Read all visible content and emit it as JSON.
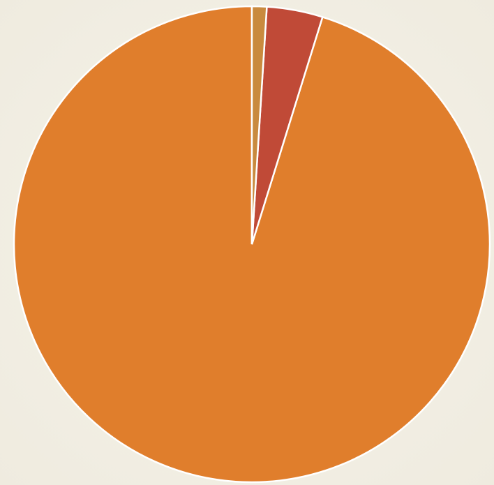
{
  "chart_data": {
    "type": "pie",
    "title": "",
    "start_angle_deg": 0,
    "direction": "counterclockwise",
    "slices": [
      {
        "label": "",
        "value": 95.2,
        "color": "#e07e2c"
      },
      {
        "label": "",
        "value": 3.8,
        "color": "#c04a37"
      },
      {
        "label": "",
        "value": 1.0,
        "color": "#c98a3e"
      }
    ],
    "separator_color": "#ffffff",
    "background_color": "#f3f0e6"
  }
}
